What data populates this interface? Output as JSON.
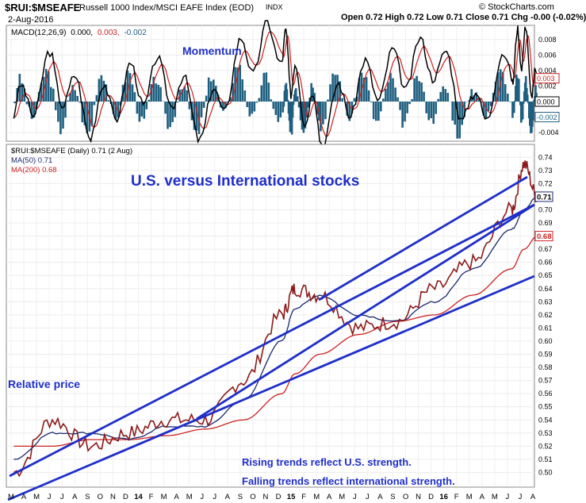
{
  "header": {
    "symbol": "$RUI:$MSEAFE",
    "description": "Russell 1000 Index/MSCI EAFE Index (EOD)",
    "exchange": "INDX",
    "date": "2-Aug-2016",
    "ohlc": "Open 0.72  High 0.72  Low 0.71  Close 0.71  Chg -0.00 (-0.02%)",
    "source": "© StockCharts.com"
  },
  "macd_panel": {
    "legend_label": "MACD(12,26,9)",
    "legend_v1": "0.000,",
    "legend_v2": "0.003,",
    "legend_v3": "-0.002",
    "annotation": "Momentum",
    "yticks": [
      "0.008",
      "0.006",
      "0.004",
      "0.002",
      "0.000",
      "-0.002",
      "-0.004"
    ],
    "value_tags": [
      "0.003",
      "0.000",
      "-0.002"
    ]
  },
  "price_panel": {
    "legend": [
      "$RUI:$MSEAFE (Daily) 0.71 (2 Aug)",
      "MA(50) 0.71",
      "MA(200) 0.68"
    ],
    "title": "U.S. versus International stocks",
    "label_left": "Relative price",
    "note_line1": "Rising trends reflect U.S. strength.",
    "note_line2": "Falling trends reflect international strength.",
    "value_tags": [
      "0.71",
      "0.68"
    ]
  },
  "colors": {
    "price": "#8b1a1a",
    "ma50": "#1a2a6e",
    "ma200": "#cc2222",
    "trendline": "#1f2fc8",
    "annotation": "#1f2fc8",
    "macd_line": "#000000",
    "signal_line": "#cc2222",
    "histogram": "#1f5f7f"
  },
  "chart_data": {
    "type": "line",
    "xaxis_labels": [
      "M",
      "A",
      "M",
      "J",
      "J",
      "A",
      "S",
      "O",
      "N",
      "D",
      "14",
      "F",
      "M",
      "A",
      "M",
      "J",
      "J",
      "A",
      "S",
      "O",
      "N",
      "D",
      "15",
      "F",
      "M",
      "A",
      "M",
      "J",
      "J",
      "A",
      "S",
      "O",
      "N",
      "D",
      "16",
      "F",
      "M",
      "A",
      "M",
      "J",
      "J",
      "A"
    ],
    "x": [
      "2013-03",
      "2013-06",
      "2013-09",
      "2013-12",
      "2014-03",
      "2014-06",
      "2014-09",
      "2014-12",
      "2015-01",
      "2015-03",
      "2015-06",
      "2015-09",
      "2015-12",
      "2016-03",
      "2016-06",
      "2016-07",
      "2016-08"
    ],
    "ylim": [
      0.49,
      0.745
    ],
    "yticks": [
      0.5,
      0.51,
      0.52,
      0.53,
      0.54,
      0.55,
      0.56,
      0.57,
      0.58,
      0.59,
      0.6,
      0.61,
      0.62,
      0.63,
      0.64,
      0.65,
      0.66,
      0.67,
      0.68,
      0.69,
      0.7,
      0.71,
      0.72,
      0.73,
      0.74
    ],
    "series": [
      {
        "name": "$RUI:$MSEAFE",
        "values": [
          0.5,
          0.54,
          0.52,
          0.53,
          0.54,
          0.54,
          0.57,
          0.62,
          0.64,
          0.635,
          0.61,
          0.615,
          0.64,
          0.66,
          0.7,
          0.735,
          0.71
        ]
      },
      {
        "name": "MA(50)",
        "values": [
          0.51,
          0.53,
          0.53,
          0.525,
          0.535,
          0.535,
          0.555,
          0.6,
          0.625,
          0.635,
          0.62,
          0.615,
          0.63,
          0.655,
          0.685,
          0.7,
          0.71
        ]
      },
      {
        "name": "MA(200)",
        "values": [
          0.52,
          0.52,
          0.525,
          0.525,
          0.528,
          0.533,
          0.54,
          0.56,
          0.575,
          0.59,
          0.605,
          0.615,
          0.62,
          0.635,
          0.655,
          0.67,
          0.68
        ]
      }
    ],
    "macd": {
      "ylim": [
        -0.0045,
        0.009
      ],
      "yticks": [
        0.008,
        0.006,
        0.004,
        0.002,
        0.0,
        -0.002,
        -0.004
      ],
      "values": [
        -0.002,
        0.004,
        -0.002,
        0.002,
        0.003,
        -0.003,
        0.006,
        0.008,
        0.002,
        -0.003,
        0.002,
        0.004,
        0.006,
        -0.002,
        0.005,
        0.008,
        0.0
      ]
    }
  }
}
